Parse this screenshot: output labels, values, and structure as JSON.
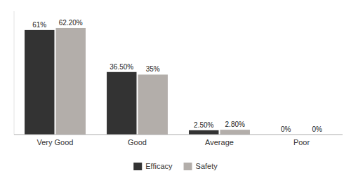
{
  "chart_data": {
    "type": "bar",
    "categories": [
      "Very Good",
      "Good",
      "Average",
      "Poor"
    ],
    "series": [
      {
        "name": "Efficacy",
        "color": "#333333",
        "values": [
          61,
          36.5,
          2.5,
          0
        ],
        "value_labels": [
          "61%",
          "36.50%",
          "2.50%",
          "0%"
        ]
      },
      {
        "name": "Safety",
        "color": "#b3aeaa",
        "values": [
          62.2,
          35,
          2.8,
          0
        ],
        "value_labels": [
          "62.20%",
          "35%",
          "2.80%",
          "0%"
        ]
      }
    ],
    "ylim": [
      0,
      72
    ],
    "data_labels": true,
    "tick_labels": "x",
    "grid": false,
    "legend": "bottom"
  }
}
